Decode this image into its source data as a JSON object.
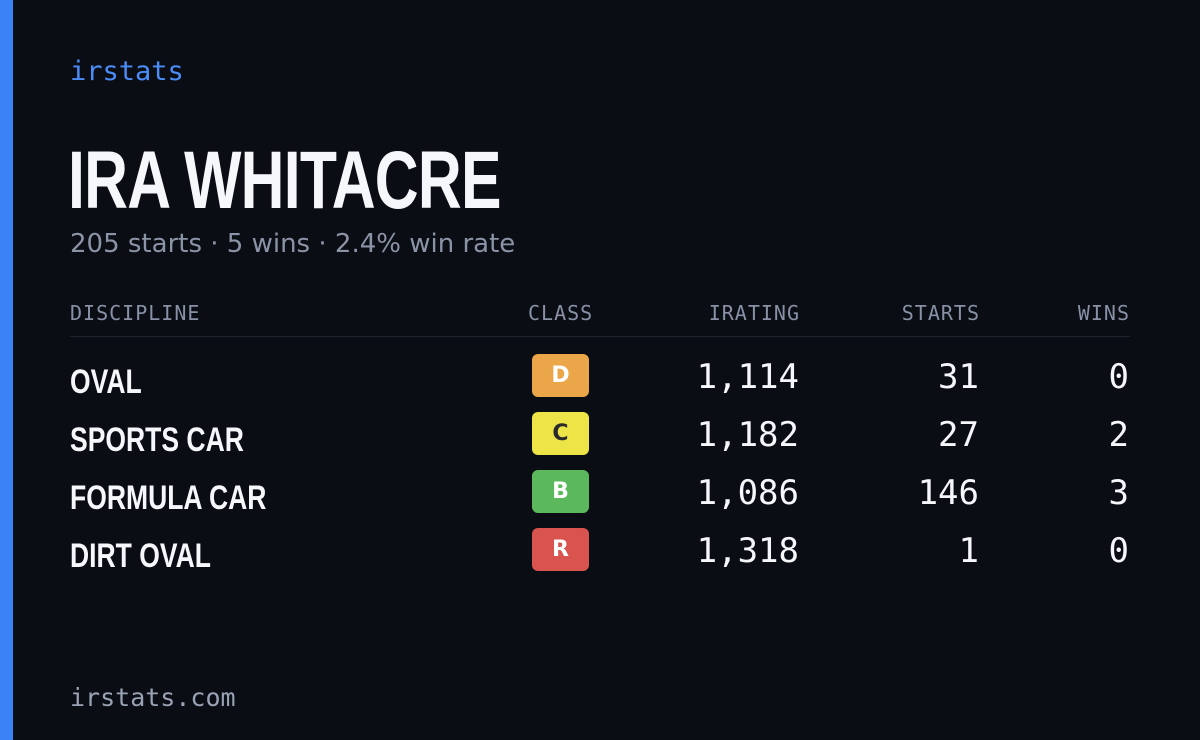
{
  "brand": "irstats",
  "player": {
    "name": "IRA WHITACRE",
    "summary": "205 starts · 5 wins · 2.4% win rate"
  },
  "table": {
    "headers": {
      "discipline": "DISCIPLINE",
      "class": "CLASS",
      "irating": "IRATING",
      "starts": "STARTS",
      "wins": "WINS"
    },
    "rows": [
      {
        "discipline": "OVAL",
        "class": "D",
        "class_color": "#eba64a",
        "class_text_color": "#ffffff",
        "irating": "1,114",
        "starts": "31",
        "wins": "0"
      },
      {
        "discipline": "SPORTS CAR",
        "class": "C",
        "class_color": "#ede547",
        "class_text_color": "#2a2a2a",
        "irating": "1,182",
        "starts": "27",
        "wins": "2"
      },
      {
        "discipline": "FORMULA CAR",
        "class": "B",
        "class_color": "#5cb85c",
        "class_text_color": "#ffffff",
        "irating": "1,086",
        "starts": "146",
        "wins": "3"
      },
      {
        "discipline": "DIRT OVAL",
        "class": "R",
        "class_color": "#d9534f",
        "class_text_color": "#ffffff",
        "irating": "1,318",
        "starts": "1",
        "wins": "0"
      }
    ]
  },
  "footer": {
    "url": "irstats.com"
  },
  "colors": {
    "accent": "#3b82f6",
    "background": "#0a0d14"
  }
}
